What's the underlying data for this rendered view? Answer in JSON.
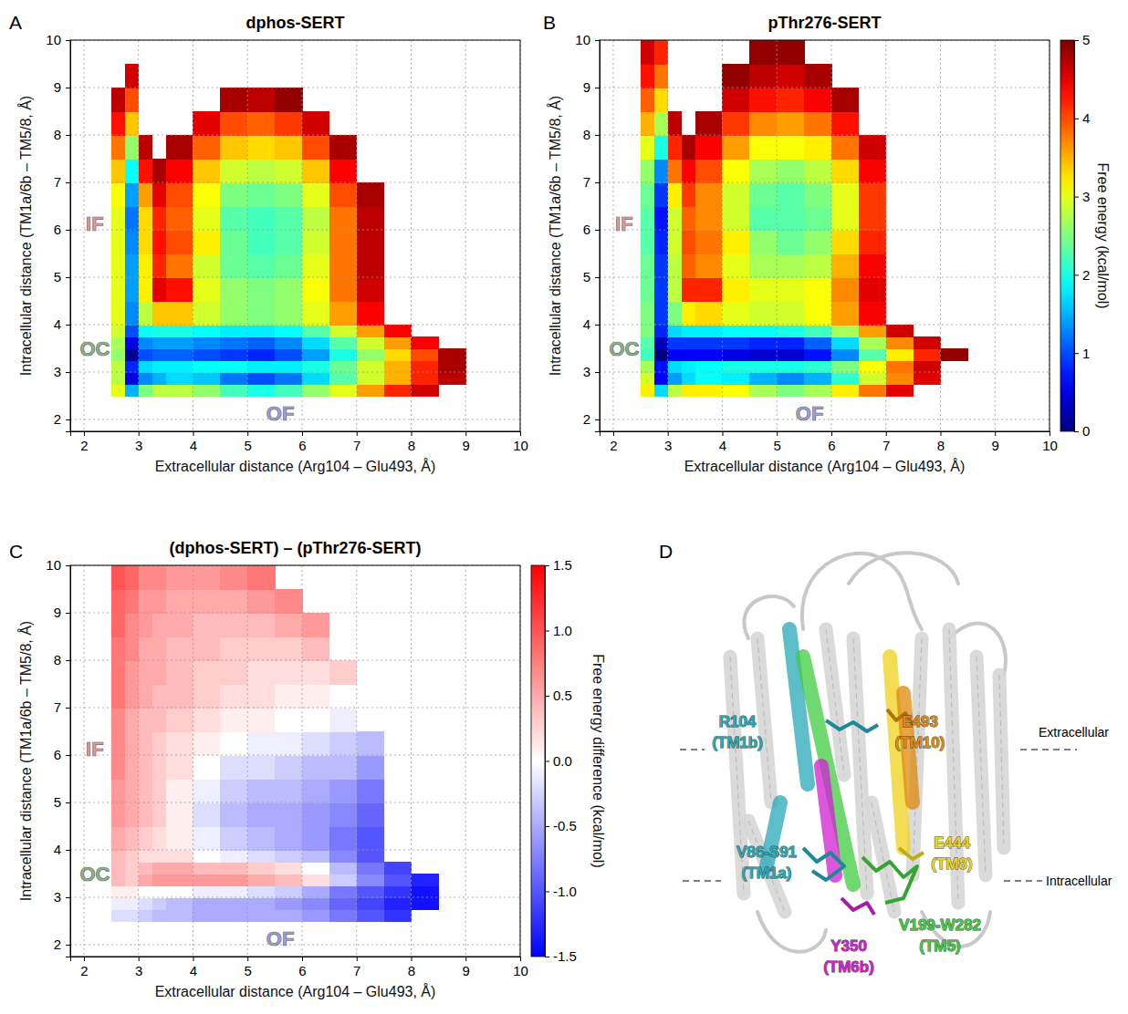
{
  "chart_data": [
    {
      "type": "heatmap",
      "panel": "A",
      "title": "dphos-SERT",
      "x_label": "Extracellular distance (Arg104 – Glu493, Å)",
      "y_label": "Intracellular distance (TM1a/6b – TM5/8, Å)",
      "xlim": [
        1.75,
        10
      ],
      "ylim": [
        1.75,
        10
      ],
      "xticks": [
        2,
        3,
        4,
        5,
        6,
        7,
        8,
        9,
        10
      ],
      "yticks": [
        2,
        3,
        4,
        5,
        6,
        7,
        8,
        9,
        10
      ],
      "grid": true,
      "color": "jet",
      "zlim": [
        0,
        5
      ],
      "x_edges": [
        2.5,
        2.75,
        3.0,
        3.25,
        3.5,
        4.0,
        4.5,
        5.0,
        5.5,
        6.0,
        6.5,
        7.0,
        7.5,
        8.0,
        8.5,
        9.0
      ],
      "y_edges": [
        2.5,
        2.75,
        3.0,
        3.25,
        3.5,
        3.75,
        4.0,
        4.5,
        5.0,
        5.5,
        6.0,
        6.5,
        7.0,
        7.5,
        8.0,
        8.5,
        9.0,
        9.5,
        10.0
      ],
      "z": [
        [
          3.0,
          1.5,
          2.5,
          2.8,
          2.8,
          2.6,
          2.2,
          2.0,
          2.2,
          2.6,
          3.0,
          3.6,
          4.2,
          4.6,
          null
        ],
        [
          2.8,
          0.5,
          1.3,
          1.5,
          1.7,
          1.6,
          1.2,
          1.0,
          1.2,
          1.7,
          2.3,
          2.9,
          3.5,
          4.2,
          4.7
        ],
        [
          2.8,
          0.8,
          1.7,
          1.8,
          1.8,
          1.9,
          1.9,
          1.8,
          1.8,
          2.0,
          2.4,
          2.9,
          3.5,
          4.2,
          4.8
        ],
        [
          2.6,
          0.1,
          1.0,
          1.1,
          1.1,
          1.0,
          0.9,
          0.8,
          1.0,
          1.4,
          2.0,
          2.6,
          3.3,
          4.0,
          4.8
        ],
        [
          2.7,
          0.5,
          1.3,
          1.4,
          1.4,
          1.3,
          1.2,
          1.1,
          1.3,
          1.7,
          2.3,
          2.9,
          3.6,
          4.4,
          null
        ],
        [
          2.9,
          1.0,
          1.9,
          2.0,
          2.0,
          1.9,
          1.8,
          1.8,
          1.9,
          2.3,
          2.9,
          3.6,
          4.4,
          null,
          null
        ],
        [
          3.0,
          1.3,
          2.8,
          3.4,
          3.4,
          2.9,
          2.6,
          2.5,
          2.6,
          3.0,
          3.6,
          4.4,
          null,
          null,
          null
        ],
        [
          3.0,
          1.4,
          3.2,
          4.5,
          4.3,
          3.0,
          2.6,
          2.5,
          2.6,
          3.1,
          3.8,
          4.6,
          null,
          null,
          null
        ],
        [
          3.0,
          1.4,
          3.2,
          4.2,
          3.8,
          2.9,
          2.4,
          2.3,
          2.4,
          3.0,
          3.8,
          4.7,
          null,
          null,
          null
        ],
        [
          3.0,
          1.3,
          3.3,
          4.3,
          4.0,
          3.2,
          2.4,
          2.2,
          2.3,
          2.9,
          3.8,
          4.7,
          null,
          null,
          null
        ],
        [
          3.0,
          1.2,
          3.3,
          4.2,
          3.9,
          3.0,
          2.3,
          2.2,
          2.3,
          2.8,
          3.8,
          4.7,
          null,
          null,
          null
        ],
        [
          3.1,
          1.4,
          3.6,
          4.5,
          4.0,
          3.1,
          2.5,
          2.4,
          2.5,
          3.0,
          4.0,
          4.8,
          null,
          null,
          null
        ],
        [
          3.4,
          1.9,
          4.3,
          4.8,
          4.4,
          3.4,
          2.9,
          2.8,
          2.9,
          3.4,
          4.4,
          null,
          null,
          null,
          null
        ],
        [
          3.8,
          2.6,
          4.7,
          null,
          4.8,
          3.9,
          3.4,
          3.3,
          3.4,
          4.0,
          4.8,
          null,
          null,
          null,
          null
        ],
        [
          4.3,
          3.4,
          null,
          null,
          null,
          4.5,
          4.0,
          3.9,
          4.1,
          4.6,
          null,
          null,
          null,
          null,
          null
        ],
        [
          4.7,
          4.0,
          null,
          null,
          null,
          null,
          4.8,
          4.7,
          4.9,
          null,
          null,
          null,
          null,
          null,
          null
        ],
        [
          null,
          4.6,
          null,
          null,
          null,
          null,
          null,
          null,
          null,
          null,
          null,
          null,
          null,
          null,
          null
        ],
        [
          null,
          null,
          null,
          null,
          null,
          null,
          null,
          null,
          null,
          null,
          null,
          null,
          null,
          null,
          null
        ]
      ],
      "annotations": [
        {
          "text": "IF",
          "x": 2.2,
          "y": 6.1,
          "color": "#e39a9a"
        },
        {
          "text": "OC",
          "x": 2.2,
          "y": 3.45,
          "color": "#86b886"
        },
        {
          "text": "OF",
          "x": 5.6,
          "y": 2.1,
          "color": "#a0a0d6"
        }
      ]
    },
    {
      "type": "heatmap",
      "panel": "B",
      "title": "pThr276-SERT",
      "x_label": "Extracellular distance (Arg104 – Glu493, Å)",
      "y_label": "Intracellular distance (TM1a/6b – TM5/8, Å)",
      "xlim": [
        1.75,
        10
      ],
      "ylim": [
        1.75,
        10
      ],
      "xticks": [
        2,
        3,
        4,
        5,
        6,
        7,
        8,
        9,
        10
      ],
      "yticks": [
        2,
        3,
        4,
        5,
        6,
        7,
        8,
        9,
        10
      ],
      "grid": true,
      "color": "jet",
      "zlim": [
        0,
        5
      ],
      "colorbar": {
        "label": "Free energy (kcal/mol)",
        "ticks": [
          0,
          1,
          2,
          3,
          4,
          5
        ]
      },
      "x_edges": [
        2.5,
        2.75,
        3.0,
        3.25,
        3.5,
        4.0,
        4.5,
        5.0,
        5.5,
        6.0,
        6.5,
        7.0,
        7.5,
        8.0,
        8.5,
        9.0
      ],
      "y_edges": [
        2.5,
        2.75,
        3.0,
        3.25,
        3.5,
        3.75,
        4.0,
        4.5,
        5.0,
        5.5,
        6.0,
        6.5,
        7.0,
        7.5,
        8.0,
        8.5,
        9.0,
        9.5,
        10.0
      ],
      "z": [
        [
          3.2,
          1.7,
          2.8,
          3.2,
          3.2,
          3.1,
          2.7,
          2.5,
          2.7,
          3.2,
          3.8,
          4.5,
          null,
          null,
          null
        ],
        [
          2.9,
          0.6,
          1.4,
          1.7,
          1.9,
          1.8,
          1.5,
          1.3,
          1.5,
          2.1,
          2.9,
          3.7,
          4.5,
          null,
          null
        ],
        [
          2.7,
          0.7,
          1.7,
          1.8,
          1.9,
          2.0,
          2.0,
          2.0,
          2.1,
          2.5,
          3.1,
          3.8,
          4.6,
          null,
          null
        ],
        [
          2.2,
          0.0,
          0.6,
          0.6,
          0.6,
          0.5,
          0.4,
          0.4,
          0.7,
          1.3,
          2.3,
          3.2,
          4.2,
          4.9,
          null
        ],
        [
          2.3,
          0.3,
          0.9,
          0.9,
          0.9,
          0.9,
          0.8,
          0.8,
          1.1,
          1.7,
          2.7,
          3.7,
          4.6,
          null,
          null
        ],
        [
          2.5,
          0.8,
          1.7,
          1.8,
          1.8,
          1.9,
          1.9,
          2.0,
          2.2,
          2.7,
          3.6,
          4.6,
          null,
          null,
          null
        ],
        [
          2.5,
          0.9,
          2.5,
          3.2,
          3.3,
          3.0,
          2.9,
          2.9,
          3.1,
          3.6,
          4.4,
          null,
          null,
          null,
          null
        ],
        [
          2.4,
          0.9,
          2.8,
          4.2,
          4.2,
          3.2,
          3.0,
          3.0,
          3.1,
          3.7,
          4.5,
          null,
          null,
          null,
          null
        ],
        [
          2.4,
          0.9,
          2.8,
          3.9,
          3.7,
          3.0,
          2.7,
          2.7,
          2.8,
          3.5,
          4.4,
          null,
          null,
          null,
          null
        ],
        [
          2.3,
          0.8,
          2.9,
          4.0,
          3.8,
          3.2,
          2.6,
          2.4,
          2.6,
          3.3,
          4.2,
          null,
          null,
          null,
          null
        ],
        [
          2.3,
          0.7,
          2.9,
          3.9,
          3.7,
          2.9,
          2.3,
          2.3,
          2.4,
          3.0,
          4.1,
          null,
          null,
          null,
          null
        ],
        [
          2.4,
          0.9,
          3.2,
          4.1,
          3.7,
          2.9,
          2.4,
          2.3,
          2.5,
          3.0,
          4.1,
          null,
          null,
          null,
          null
        ],
        [
          2.6,
          1.3,
          3.8,
          4.4,
          4.0,
          3.1,
          2.7,
          2.6,
          2.8,
          3.3,
          4.4,
          null,
          null,
          null,
          null
        ],
        [
          3.0,
          2.0,
          4.2,
          4.8,
          4.4,
          3.6,
          3.1,
          3.1,
          3.2,
          3.8,
          4.6,
          null,
          null,
          null,
          null
        ],
        [
          3.5,
          2.7,
          4.7,
          null,
          4.8,
          4.1,
          3.7,
          3.6,
          3.8,
          4.3,
          null,
          null,
          null,
          null,
          null
        ],
        [
          3.9,
          3.3,
          null,
          null,
          null,
          4.6,
          4.3,
          4.2,
          4.4,
          4.8,
          null,
          null,
          null,
          null,
          null
        ],
        [
          4.3,
          3.8,
          null,
          null,
          null,
          4.9,
          4.7,
          4.6,
          4.8,
          null,
          null,
          null,
          null,
          null,
          null
        ],
        [
          4.6,
          4.2,
          null,
          null,
          null,
          null,
          4.9,
          4.9,
          null,
          null,
          null,
          null,
          null,
          null,
          null
        ]
      ],
      "annotations": [
        {
          "text": "IF",
          "x": 2.2,
          "y": 6.1,
          "color": "#e39a9a"
        },
        {
          "text": "OC",
          "x": 2.2,
          "y": 3.45,
          "color": "#86b886"
        },
        {
          "text": "OF",
          "x": 5.6,
          "y": 2.1,
          "color": "#a0a0d6"
        }
      ]
    },
    {
      "type": "heatmap",
      "panel": "C",
      "title": "(dphos-SERT) – (pThr276-SERT)",
      "x_label": "Extracellular distance (Arg104 – Glu493, Å)",
      "y_label": "Intracellular distance (TM1a/6b – TM5/8, Å)",
      "xlim": [
        1.75,
        10
      ],
      "ylim": [
        1.75,
        10
      ],
      "xticks": [
        2,
        3,
        4,
        5,
        6,
        7,
        8,
        9,
        10
      ],
      "yticks": [
        2,
        3,
        4,
        5,
        6,
        7,
        8,
        9,
        10
      ],
      "grid": true,
      "color": "bwr",
      "zlim": [
        -1.5,
        1.5
      ],
      "colorbar": {
        "label": "Free energy difference (kcal/mol)",
        "ticks": [
          -1.5,
          {
            "value": -1.0,
            "label": "-1.0"
          },
          -0.5,
          {
            "value": 0.0,
            "label": "0.0"
          },
          0.5,
          {
            "value": 1.0,
            "label": "1.0"
          },
          1.5
        ]
      },
      "x_edges": [
        2.5,
        2.75,
        3.0,
        3.25,
        3.5,
        4.0,
        4.5,
        5.0,
        5.5,
        6.0,
        6.5,
        7.0,
        7.5,
        8.0,
        8.5,
        9.0
      ],
      "y_edges": [
        2.5,
        2.75,
        3.0,
        3.25,
        3.5,
        3.75,
        4.0,
        4.5,
        5.0,
        5.5,
        6.0,
        6.5,
        7.0,
        7.5,
        8.0,
        8.5,
        9.0,
        9.5,
        10.0
      ],
      "z": [
        [
          -0.2,
          -0.2,
          -0.3,
          -0.4,
          -0.4,
          -0.5,
          -0.5,
          -0.5,
          -0.5,
          -0.6,
          -0.8,
          -1.0,
          -1.2,
          null,
          null
        ],
        [
          -0.1,
          -0.1,
          -0.2,
          -0.3,
          -0.4,
          -0.5,
          -0.5,
          -0.5,
          -0.6,
          -0.7,
          -0.9,
          -1.1,
          -1.3,
          -1.4,
          null
        ],
        [
          0.1,
          0.1,
          0.0,
          0.0,
          0.0,
          -0.1,
          -0.1,
          -0.2,
          -0.3,
          -0.5,
          -0.8,
          -1.0,
          -1.2,
          -1.4,
          null
        ],
        [
          0.4,
          0.3,
          0.5,
          0.6,
          0.6,
          0.6,
          0.6,
          0.5,
          0.4,
          0.2,
          -0.3,
          -0.7,
          -1.0,
          -1.3,
          null
        ],
        [
          0.4,
          0.3,
          0.4,
          0.5,
          0.5,
          0.4,
          0.4,
          0.3,
          0.2,
          0.0,
          -0.4,
          -0.8,
          -1.1,
          null,
          null
        ],
        [
          0.4,
          0.3,
          0.2,
          0.2,
          0.2,
          0.0,
          -0.1,
          -0.2,
          -0.3,
          -0.4,
          -0.7,
          -1.0,
          null,
          null,
          null
        ],
        [
          0.5,
          0.4,
          0.3,
          0.2,
          0.1,
          -0.1,
          -0.3,
          -0.4,
          -0.5,
          -0.6,
          -0.8,
          -1.0,
          null,
          null,
          null
        ],
        [
          0.6,
          0.5,
          0.4,
          0.3,
          0.1,
          -0.2,
          -0.4,
          -0.5,
          -0.5,
          -0.6,
          -0.7,
          -0.9,
          null,
          null,
          null
        ],
        [
          0.6,
          0.5,
          0.4,
          0.3,
          0.1,
          -0.1,
          -0.3,
          -0.4,
          -0.4,
          -0.5,
          -0.6,
          -0.8,
          null,
          null,
          null
        ],
        [
          0.7,
          0.5,
          0.4,
          0.3,
          0.2,
          0.0,
          -0.2,
          -0.2,
          -0.3,
          -0.4,
          -0.4,
          -0.6,
          null,
          null,
          null
        ],
        [
          0.7,
          0.5,
          0.4,
          0.3,
          0.2,
          0.1,
          0.0,
          -0.1,
          -0.1,
          -0.2,
          -0.3,
          -0.4,
          null,
          null,
          null
        ],
        [
          0.7,
          0.5,
          0.4,
          0.4,
          0.3,
          0.2,
          0.1,
          0.1,
          0.0,
          0.0,
          -0.1,
          null,
          null,
          null,
          null
        ],
        [
          0.8,
          0.6,
          0.5,
          0.4,
          0.4,
          0.3,
          0.2,
          0.2,
          0.1,
          0.1,
          0.0,
          null,
          null,
          null,
          null
        ],
        [
          0.8,
          0.6,
          0.5,
          0.5,
          0.4,
          0.3,
          0.3,
          0.2,
          0.2,
          0.2,
          0.3,
          null,
          null,
          null,
          null
        ],
        [
          0.8,
          0.7,
          0.5,
          0.5,
          0.4,
          0.4,
          0.3,
          0.3,
          0.3,
          0.4,
          null,
          null,
          null,
          null,
          null
        ],
        [
          0.9,
          0.7,
          0.6,
          0.5,
          0.5,
          0.4,
          0.4,
          0.4,
          0.5,
          0.6,
          null,
          null,
          null,
          null,
          null
        ],
        [
          0.9,
          0.8,
          0.6,
          0.6,
          0.5,
          0.5,
          0.5,
          0.6,
          0.7,
          null,
          null,
          null,
          null,
          null,
          null
        ],
        [
          1.0,
          0.9,
          0.7,
          0.7,
          0.6,
          0.6,
          0.7,
          0.8,
          null,
          null,
          null,
          null,
          null,
          null,
          null
        ]
      ],
      "annotations": [
        {
          "text": "IF",
          "x": 2.2,
          "y": 6.1,
          "color": "#e39a9a"
        },
        {
          "text": "OC",
          "x": 2.2,
          "y": 3.45,
          "color": "#86b886"
        },
        {
          "text": "OF",
          "x": 5.6,
          "y": 2.1,
          "color": "#a0a0d6"
        }
      ]
    }
  ],
  "diagram": {
    "panel": "D",
    "membrane": [
      "Extracellular",
      "Intracellular"
    ],
    "residues": [
      {
        "residue": "R104",
        "helix": "(TM1b)",
        "color": "#27a9b8"
      },
      {
        "residue": "E493",
        "helix": "(TM10)",
        "color": "#e08a0c"
      },
      {
        "residue": "V86-S91",
        "helix": "(TM1a)",
        "color": "#27a9b8"
      },
      {
        "residue": "E444",
        "helix": "(TM8)",
        "color": "#eed21c"
      },
      {
        "residue": "Y350",
        "helix": "(TM6b)",
        "color": "#d21fd2"
      },
      {
        "residue": "V199-W282",
        "helix": "(TM5)",
        "color": "#40cc40"
      }
    ]
  }
}
